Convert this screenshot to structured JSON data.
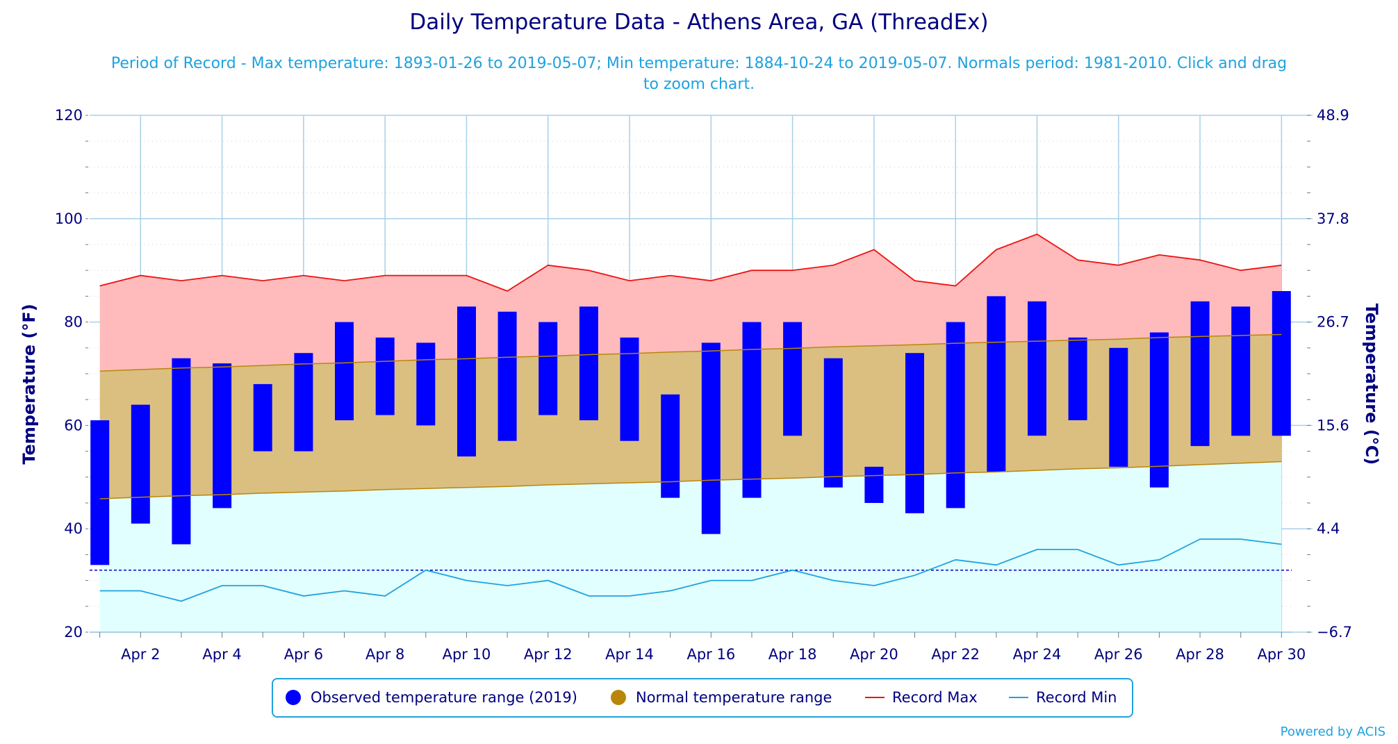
{
  "chart_data": {
    "type": "bar",
    "title": "Daily Temperature Data - Athens Area, GA (ThreadEx)",
    "subtitle_line1": "Period of Record - Max temperature: 1893-01-26 to 2019-05-07; Min temperature: 1884-10-24 to 2019-05-07. Normals period: 1981-2010. Click and drag",
    "subtitle_line2": "to zoom chart.",
    "ylabel": "Temperature (°F)",
    "ylabel_right": "Temperature (°C)",
    "ylim": [
      20,
      120
    ],
    "yticks": [
      20,
      40,
      60,
      80,
      100,
      120
    ],
    "yticks_right": [
      "-6.7",
      "4.4",
      "15.6",
      "26.7",
      "37.8",
      "48.9"
    ],
    "freezing_line": 32,
    "grid": true,
    "legend_position": "bottom-center",
    "x_days": [
      1,
      2,
      3,
      4,
      5,
      6,
      7,
      8,
      9,
      10,
      11,
      12,
      13,
      14,
      15,
      16,
      17,
      18,
      19,
      20,
      21,
      22,
      23,
      24,
      25,
      26,
      27,
      28,
      29,
      30
    ],
    "x_tick_labels": [
      {
        "day": 2,
        "label": "Apr 2"
      },
      {
        "day": 4,
        "label": "Apr 4"
      },
      {
        "day": 6,
        "label": "Apr 6"
      },
      {
        "day": 8,
        "label": "Apr 8"
      },
      {
        "day": 10,
        "label": "Apr 10"
      },
      {
        "day": 12,
        "label": "Apr 12"
      },
      {
        "day": 14,
        "label": "Apr 14"
      },
      {
        "day": 16,
        "label": "Apr 16"
      },
      {
        "day": 18,
        "label": "Apr 18"
      },
      {
        "day": 20,
        "label": "Apr 20"
      },
      {
        "day": 22,
        "label": "Apr 22"
      },
      {
        "day": 24,
        "label": "Apr 24"
      },
      {
        "day": 26,
        "label": "Apr 26"
      },
      {
        "day": 28,
        "label": "Apr 28"
      },
      {
        "day": 30,
        "label": "Apr 30"
      }
    ],
    "series": [
      {
        "name": "Observed temperature range (2019)",
        "color": "#0000ff",
        "high": [
          61,
          64,
          73,
          72,
          68,
          74,
          80,
          77,
          76,
          83,
          82,
          80,
          83,
          77,
          66,
          76,
          80,
          80,
          73,
          52,
          74,
          80,
          85,
          84,
          77,
          75,
          78,
          84,
          83,
          86
        ],
        "low": [
          33,
          41,
          37,
          44,
          55,
          55,
          61,
          62,
          60,
          54,
          57,
          62,
          61,
          57,
          46,
          39,
          46,
          58,
          48,
          45,
          43,
          44,
          51,
          58,
          61,
          52,
          48,
          56,
          58,
          58
        ]
      },
      {
        "name": "Normal temperature range",
        "color": "#b8860b",
        "high": [
          70.5,
          70.8,
          71.1,
          71.3,
          71.6,
          71.9,
          72.1,
          72.4,
          72.7,
          72.9,
          73.2,
          73.4,
          73.7,
          73.9,
          74.2,
          74.4,
          74.7,
          74.9,
          75.2,
          75.4,
          75.6,
          75.9,
          76.1,
          76.3,
          76.5,
          76.7,
          77.0,
          77.2,
          77.4,
          77.6
        ],
        "low": [
          45.8,
          46.1,
          46.4,
          46.6,
          46.9,
          47.1,
          47.3,
          47.6,
          47.8,
          48.0,
          48.2,
          48.5,
          48.7,
          48.9,
          49.1,
          49.4,
          49.6,
          49.8,
          50.1,
          50.3,
          50.5,
          50.8,
          51.0,
          51.3,
          51.6,
          51.8,
          52.1,
          52.4,
          52.7,
          53.0
        ]
      },
      {
        "name": "Record Max",
        "color": "#ee1111",
        "values": [
          87,
          89,
          88,
          89,
          88,
          89,
          88,
          89,
          89,
          89,
          86,
          91,
          90,
          88,
          89,
          88,
          90,
          90,
          91,
          94,
          88,
          87,
          94,
          97,
          92,
          91,
          93,
          92,
          90,
          91
        ]
      },
      {
        "name": "Record Min",
        "color": "#1ea2df",
        "values": [
          28,
          28,
          26,
          29,
          29,
          27,
          28,
          27,
          32,
          30,
          29,
          30,
          27,
          27,
          28,
          30,
          30,
          32,
          30,
          29,
          31,
          34,
          33,
          36,
          36,
          33,
          34,
          38,
          38,
          37
        ]
      }
    ],
    "credit": "Powered by ACIS"
  }
}
